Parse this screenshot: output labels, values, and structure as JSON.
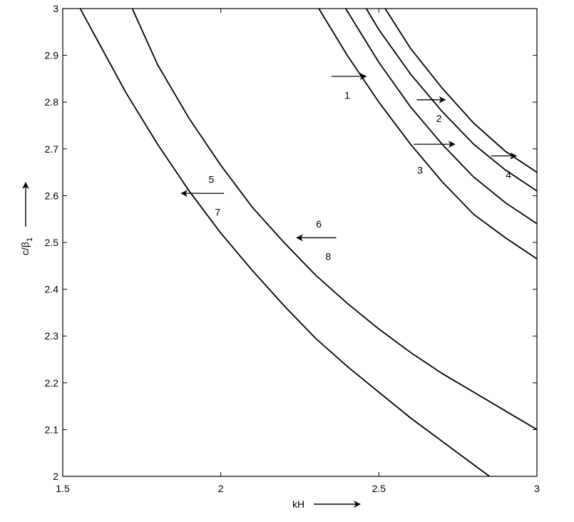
{
  "chart_data": {
    "type": "line",
    "title": "",
    "xlabel": "kH",
    "ylabel_main": "c/β",
    "ylabel_sub": "1",
    "xlim": [
      1.5,
      3
    ],
    "ylim": [
      2,
      3
    ],
    "xticks": [
      1.5,
      2,
      2.5,
      3
    ],
    "xtick_labels": [
      "1.5",
      "2",
      "2.5",
      "3"
    ],
    "yticks": [
      2,
      2.1,
      2.2,
      2.3,
      2.4,
      2.5,
      2.6,
      2.7,
      2.8,
      2.9,
      3
    ],
    "ytick_labels": [
      "2",
      "2.1",
      "2.2",
      "2.3",
      "2.4",
      "2.5",
      "2.6",
      "2.7",
      "2.8",
      "2.9",
      "3"
    ],
    "grid": false,
    "legend": "none",
    "line_color": "#000000",
    "series": [
      {
        "x": [
          1.555,
          1.7,
          1.8,
          1.9,
          2.0,
          2.1,
          2.2,
          2.3,
          2.4,
          2.5,
          2.6,
          2.7,
          2.8,
          2.85
        ],
        "y": [
          3.0,
          2.82,
          2.71,
          2.61,
          2.52,
          2.44,
          2.365,
          2.295,
          2.235,
          2.18,
          2.125,
          2.075,
          2.025,
          2.0
        ]
      },
      {
        "x": [
          1.72,
          1.8,
          1.9,
          2.0,
          2.1,
          2.2,
          2.3,
          2.4,
          2.5,
          2.6,
          2.7,
          2.8,
          2.9,
          3.0
        ],
        "y": [
          3.0,
          2.88,
          2.765,
          2.665,
          2.575,
          2.5,
          2.43,
          2.37,
          2.315,
          2.265,
          2.22,
          2.18,
          2.14,
          2.1
        ]
      },
      {
        "x": [
          2.31,
          2.4,
          2.5,
          2.6,
          2.7,
          2.8,
          2.9,
          3.0
        ],
        "y": [
          3.0,
          2.9,
          2.8,
          2.71,
          2.63,
          2.56,
          2.51,
          2.465
        ]
      },
      {
        "x": [
          2.395,
          2.5,
          2.6,
          2.7,
          2.8,
          2.9,
          3.0
        ],
        "y": [
          3.0,
          2.885,
          2.79,
          2.71,
          2.64,
          2.585,
          2.54
        ]
      },
      {
        "x": [
          2.46,
          2.5,
          2.6,
          2.7,
          2.8,
          2.9,
          3.0
        ],
        "y": [
          3.0,
          2.955,
          2.86,
          2.78,
          2.71,
          2.655,
          2.61
        ]
      },
      {
        "x": [
          2.52,
          2.6,
          2.7,
          2.8,
          2.9,
          3.0
        ],
        "y": [
          3.0,
          2.915,
          2.83,
          2.755,
          2.695,
          2.65
        ]
      }
    ],
    "annotations": [
      {
        "text": "1",
        "x": 2.4,
        "y": 2.815
      },
      {
        "text": "2",
        "x": 2.69,
        "y": 2.765
      },
      {
        "text": "3",
        "x": 2.63,
        "y": 2.655
      },
      {
        "text": "4",
        "x": 2.91,
        "y": 2.645
      },
      {
        "text": "5",
        "x": 1.97,
        "y": 2.635
      },
      {
        "text": "7",
        "x": 1.99,
        "y": 2.565
      },
      {
        "text": "6",
        "x": 2.31,
        "y": 2.54
      },
      {
        "text": "8",
        "x": 2.34,
        "y": 2.47
      }
    ],
    "arrows": [
      {
        "from": [
          2.35,
          2.855
        ],
        "to": [
          2.46,
          2.855
        ]
      },
      {
        "from": [
          2.62,
          2.805
        ],
        "to": [
          2.71,
          2.805
        ]
      },
      {
        "from": [
          2.61,
          2.71
        ],
        "to": [
          2.74,
          2.71
        ]
      },
      {
        "from": [
          2.855,
          2.685
        ],
        "to": [
          2.935,
          2.685
        ]
      },
      {
        "from": [
          2.01,
          2.605
        ],
        "to": [
          1.875,
          2.605
        ]
      },
      {
        "from": [
          2.365,
          2.51
        ],
        "to": [
          2.24,
          2.51
        ]
      }
    ]
  }
}
